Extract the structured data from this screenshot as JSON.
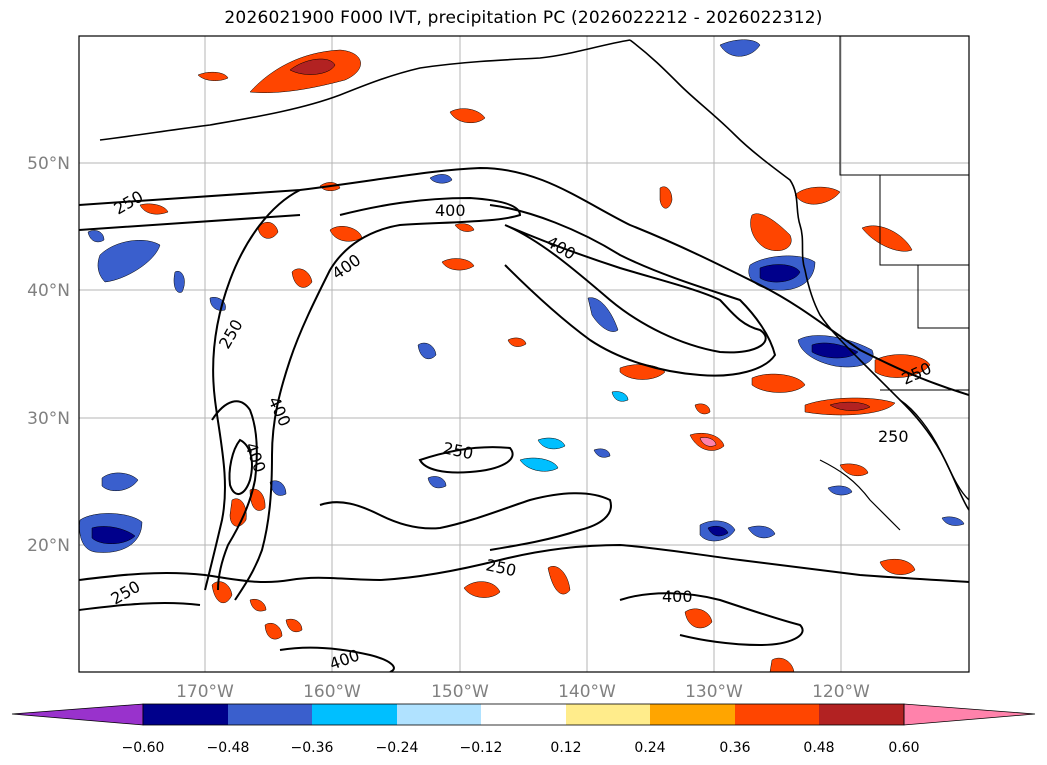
{
  "title": "2026021900 F000 IVT, precipitation PC (2026022212 - 2026022312)",
  "lat_labels": [
    "50°N",
    "40°N",
    "30°N",
    "20°N"
  ],
  "lon_labels": [
    "170°W",
    "160°W",
    "150°W",
    "140°W",
    "130°W",
    "120°W"
  ],
  "contour_labels": [
    "250",
    "400",
    "400",
    "400",
    "250",
    "400",
    "400",
    "250",
    "250",
    "250",
    "250",
    "250",
    "400",
    "400"
  ],
  "colorbar": {
    "ticks": [
      "−0.60",
      "−0.48",
      "−0.36",
      "−0.24",
      "−0.12",
      "0.12",
      "0.24",
      "0.36",
      "0.48",
      "0.60"
    ],
    "colors": [
      "#9932cc",
      "#00008b",
      "#3a5fcd",
      "#00bfff",
      "#b0e2ff",
      "#ffffff",
      "#ffec8b",
      "#ffa500",
      "#ff4500",
      "#b22222",
      "#ff82ab"
    ]
  }
}
